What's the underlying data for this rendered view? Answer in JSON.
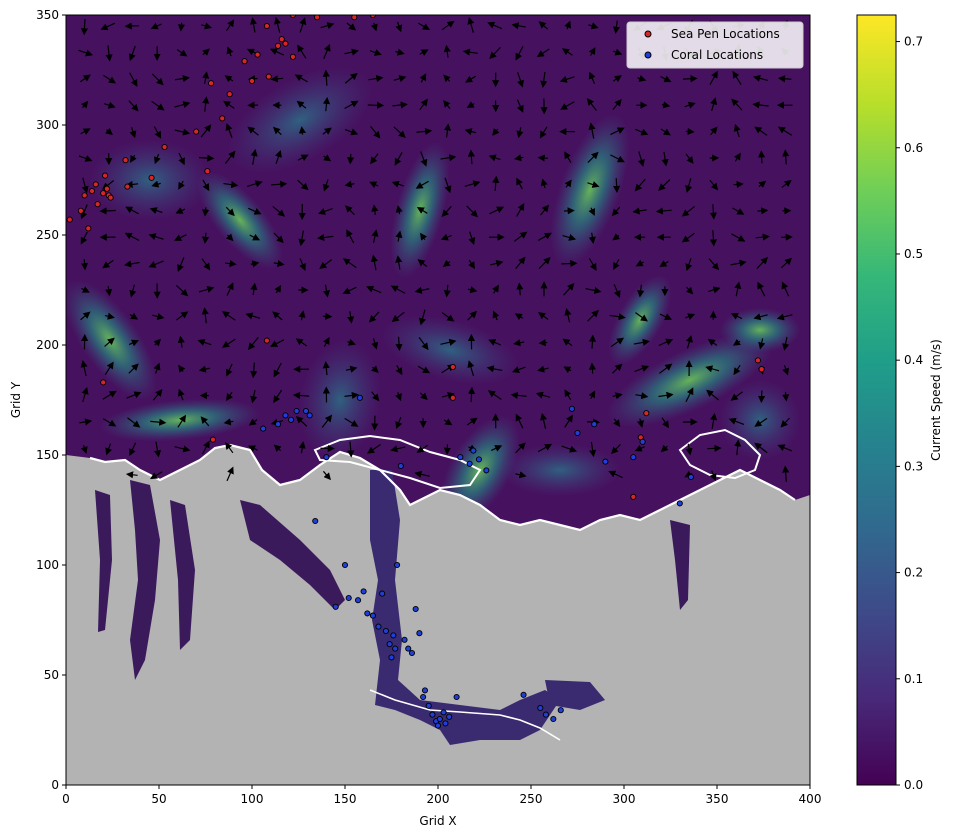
{
  "chart_data": {
    "type": "heatmap",
    "title": "",
    "xlabel": "Grid X",
    "ylabel": "Grid Y",
    "xlim": [
      0,
      400
    ],
    "ylim": [
      0,
      350
    ],
    "xticks": [
      0,
      50,
      100,
      150,
      200,
      250,
      300,
      350,
      400
    ],
    "yticks": [
      0,
      50,
      100,
      150,
      200,
      250,
      300,
      350
    ],
    "colorbar": {
      "label": "Current Speed (m/s)",
      "min": 0.0,
      "max": 0.725,
      "ticks": [
        "0.0",
        "0.1",
        "0.2",
        "0.3",
        "0.4",
        "0.5",
        "0.6",
        "0.7"
      ],
      "colormap": "viridis",
      "colors": [
        "#440154",
        "#482878",
        "#3e4989",
        "#31688e",
        "#26828e",
        "#1f9e89",
        "#35b779",
        "#6ece58",
        "#b5de2b",
        "#fde725"
      ]
    },
    "land_color": "#b3b3b3",
    "legend": {
      "placement": "top-right",
      "entries": [
        {
          "label": "Sea Pen Locations",
          "color": "#d62728"
        },
        {
          "label": "Coral Locations",
          "color": "#1f3fd6"
        }
      ]
    },
    "series": [
      {
        "name": "Sea Pen Locations",
        "color": "#d62728",
        "points": [
          [
            2,
            257
          ],
          [
            8,
            261
          ],
          [
            10,
            268
          ],
          [
            12,
            253
          ],
          [
            14,
            270
          ],
          [
            16,
            273
          ],
          [
            17,
            264
          ],
          [
            20,
            269
          ],
          [
            20,
            183
          ],
          [
            21,
            277
          ],
          [
            22,
            271
          ],
          [
            23,
            268
          ],
          [
            24,
            267
          ],
          [
            32,
            284
          ],
          [
            33,
            272
          ],
          [
            46,
            276
          ],
          [
            53,
            290
          ],
          [
            70,
            297
          ],
          [
            76,
            279
          ],
          [
            78,
            319
          ],
          [
            79,
            157
          ],
          [
            84,
            303
          ],
          [
            88,
            314
          ],
          [
            96,
            329
          ],
          [
            100,
            320
          ],
          [
            103,
            332
          ],
          [
            108,
            345
          ],
          [
            109,
            322
          ],
          [
            108,
            202
          ],
          [
            114,
            336
          ],
          [
            116,
            339
          ],
          [
            118,
            337
          ],
          [
            122,
            331
          ],
          [
            122,
            350
          ],
          [
            135,
            349
          ],
          [
            155,
            349
          ],
          [
            165,
            350
          ],
          [
            208,
            190
          ],
          [
            208,
            176
          ],
          [
            305,
            131
          ],
          [
            309,
            158
          ],
          [
            312,
            169
          ],
          [
            372,
            193
          ],
          [
            374,
            189
          ]
        ]
      },
      {
        "name": "Coral Locations",
        "color": "#1f3fd6",
        "points": [
          [
            106,
            162
          ],
          [
            114,
            164
          ],
          [
            118,
            168
          ],
          [
            121,
            166
          ],
          [
            124,
            170
          ],
          [
            129,
            170
          ],
          [
            131,
            168
          ],
          [
            134,
            120
          ],
          [
            140,
            149
          ],
          [
            145,
            81
          ],
          [
            150,
            100
          ],
          [
            152,
            85
          ],
          [
            157,
            84
          ],
          [
            158,
            176
          ],
          [
            160,
            88
          ],
          [
            162,
            78
          ],
          [
            165,
            77
          ],
          [
            168,
            72
          ],
          [
            170,
            87
          ],
          [
            172,
            70
          ],
          [
            174,
            64
          ],
          [
            175,
            58
          ],
          [
            176,
            68
          ],
          [
            177,
            62
          ],
          [
            178,
            100
          ],
          [
            180,
            145
          ],
          [
            182,
            66
          ],
          [
            184,
            62
          ],
          [
            186,
            60
          ],
          [
            188,
            80
          ],
          [
            190,
            69
          ],
          [
            192,
            40
          ],
          [
            193,
            43
          ],
          [
            195,
            36
          ],
          [
            197,
            32
          ],
          [
            199,
            29
          ],
          [
            200,
            27
          ],
          [
            201,
            30
          ],
          [
            203,
            33
          ],
          [
            204,
            28
          ],
          [
            206,
            31
          ],
          [
            210,
            40
          ],
          [
            212,
            149
          ],
          [
            217,
            146
          ],
          [
            219,
            152
          ],
          [
            222,
            148
          ],
          [
            226,
            143
          ],
          [
            246,
            41
          ],
          [
            255,
            35
          ],
          [
            258,
            32
          ],
          [
            262,
            30
          ],
          [
            266,
            34
          ],
          [
            272,
            171
          ],
          [
            275,
            160
          ],
          [
            284,
            164
          ],
          [
            290,
            147
          ],
          [
            305,
            149
          ],
          [
            310,
            156
          ],
          [
            330,
            128
          ],
          [
            336,
            140
          ]
        ]
      }
    ]
  }
}
